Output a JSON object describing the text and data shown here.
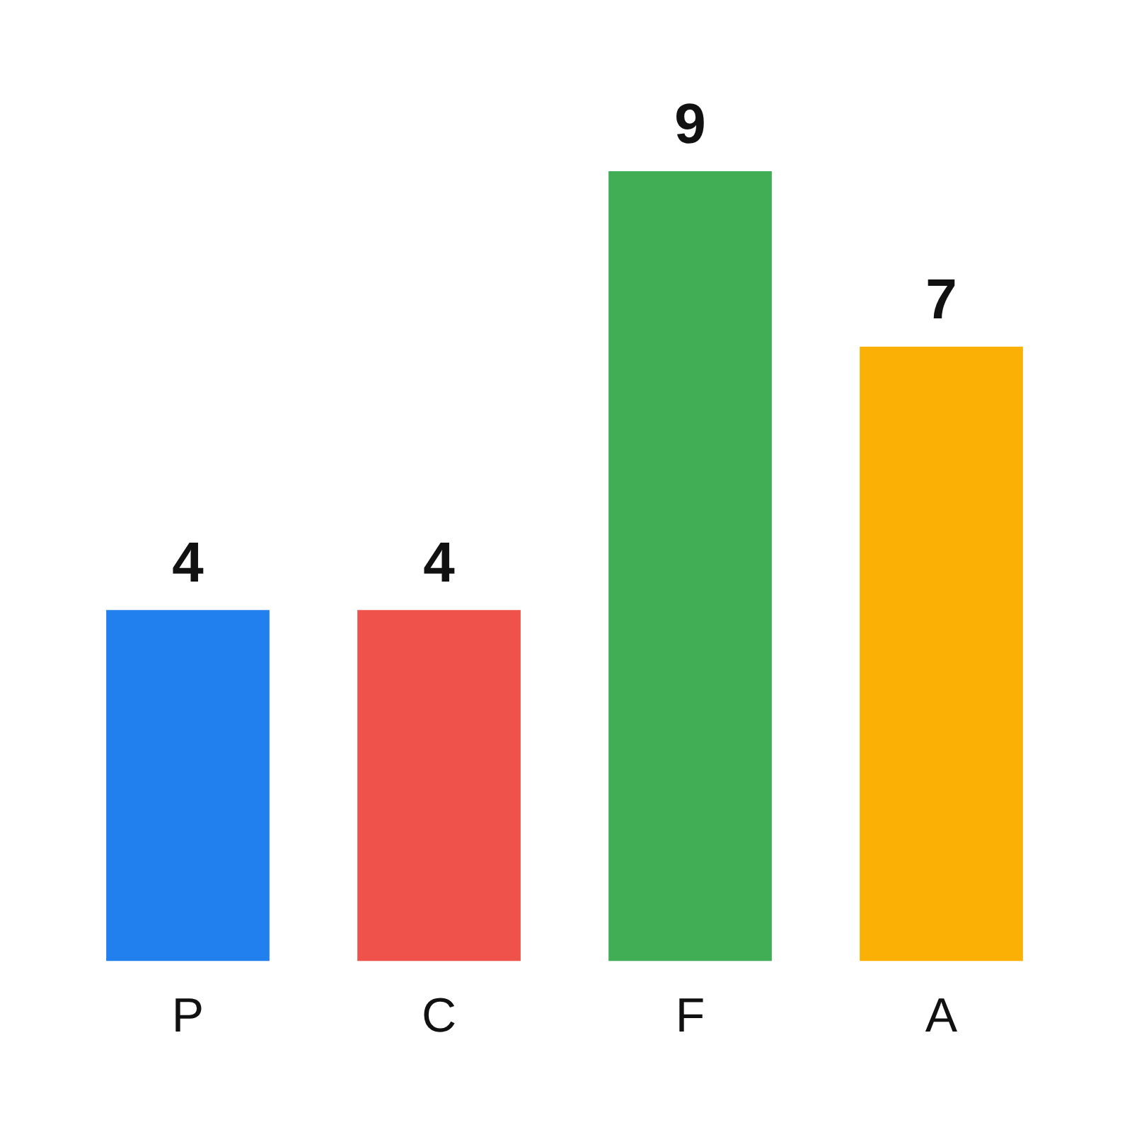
{
  "chart_data": {
    "type": "bar",
    "categories": [
      "P",
      "C",
      "F",
      "A"
    ],
    "values": [
      4,
      4,
      9,
      7
    ],
    "colors": [
      "#2280ee",
      "#ef524a",
      "#41ad55",
      "#fab005"
    ],
    "tick_labels": "x",
    "data_labels": true
  }
}
